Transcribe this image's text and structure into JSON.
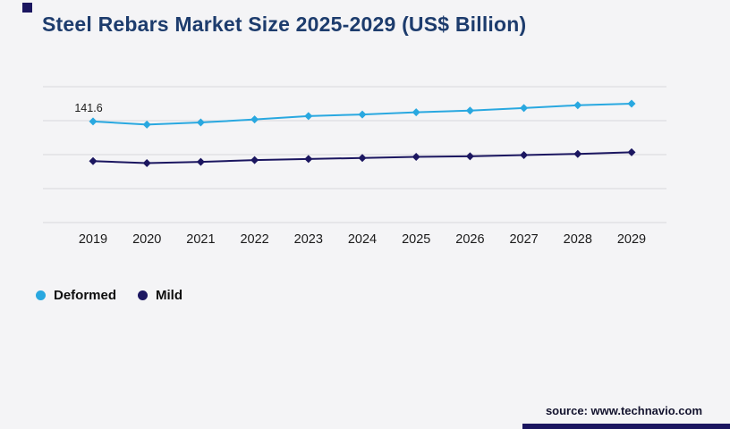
{
  "page": {
    "background": "#f4f4f6",
    "accent_color": "#1b1660"
  },
  "chart_data": {
    "type": "line",
    "title": "Steel Rebars Market Size 2025-2029 (US$ Billion)",
    "title_color": "#1d3c6d",
    "x": [
      "2019",
      "2020",
      "2021",
      "2022",
      "2023",
      "2024",
      "2025",
      "2026",
      "2027",
      "2028",
      "2029"
    ],
    "series": [
      {
        "name": "Deformed",
        "color": "#29a8e0",
        "marker": "diamond",
        "values": [
          141.6,
          138.2,
          140.5,
          143.8,
          147.6,
          149.3,
          151.8,
          153.6,
          156.4,
          159.5,
          161.2
        ]
      },
      {
        "name": "Mild",
        "color": "#1b1660",
        "marker": "diamond",
        "values": [
          97.8,
          95.6,
          97.0,
          98.9,
          100.2,
          101.3,
          102.5,
          103.2,
          104.5,
          105.8,
          107.6
        ]
      }
    ],
    "annotations": [
      {
        "series": "Deformed",
        "index": 0,
        "text": "141.6"
      }
    ],
    "xlabel": "",
    "ylabel": "",
    "ylim": [
      30,
      180
    ],
    "gridline_count": 5,
    "grid": "horizontal-only",
    "grid_color": "#d9d9dc",
    "y_axis_labels_visible": false,
    "legend_position": "bottom-left",
    "tick_label_color": "#1b1b1b"
  },
  "footer": {
    "source": "source: www.technavio.com"
  }
}
